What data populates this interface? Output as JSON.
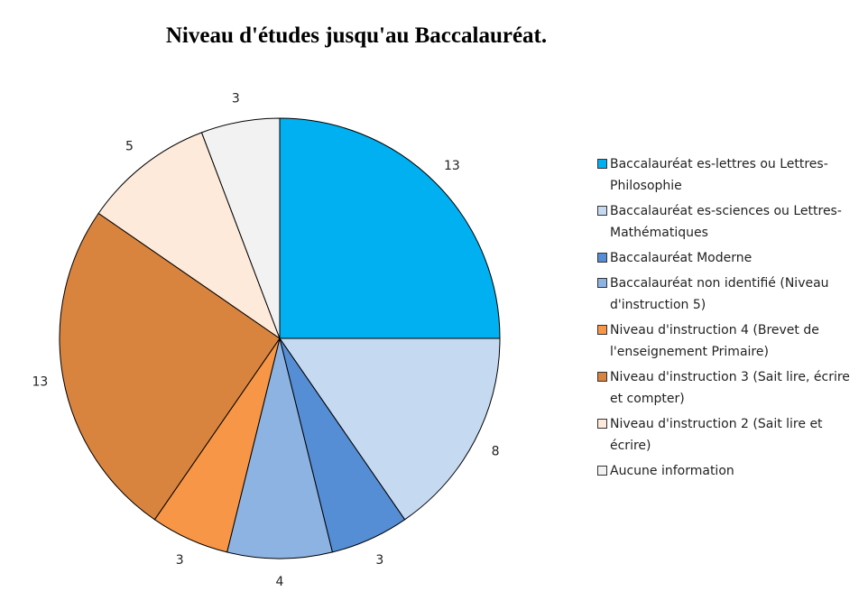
{
  "chart_data": {
    "type": "pie",
    "title": "Niveau d'études jusqu'au Baccalauréat.",
    "legend_position": "right",
    "slices": [
      {
        "label": "Baccalauréat es-lettres ou Lettres-Philosophie",
        "value": 13,
        "color": "#00b0f0"
      },
      {
        "label": "Baccalauréat es-sciences ou  Lettres-Mathématiques",
        "value": 8,
        "color": "#c5d9f1"
      },
      {
        "label": "Baccalauréat Moderne",
        "value": 3,
        "color": "#558ed5"
      },
      {
        "label": "Baccalauréat non identifié (Niveau d'instruction 5)",
        "value": 4,
        "color": "#8db3e2"
      },
      {
        "label": "Niveau d'instruction 4 (Brevet de l'enseignement Primaire)",
        "value": 3,
        "color": "#f79646"
      },
      {
        "label": "Niveau d'instruction 3 (Sait lire, écrire et compter)",
        "value": 13,
        "color": "#d9843e"
      },
      {
        "label": "Niveau d'instruction 2 (Sait lire et écrire)",
        "value": 5,
        "color": "#fdeada"
      },
      {
        "label": "Aucune information",
        "value": 3,
        "color": "#f2f2f2"
      }
    ]
  }
}
